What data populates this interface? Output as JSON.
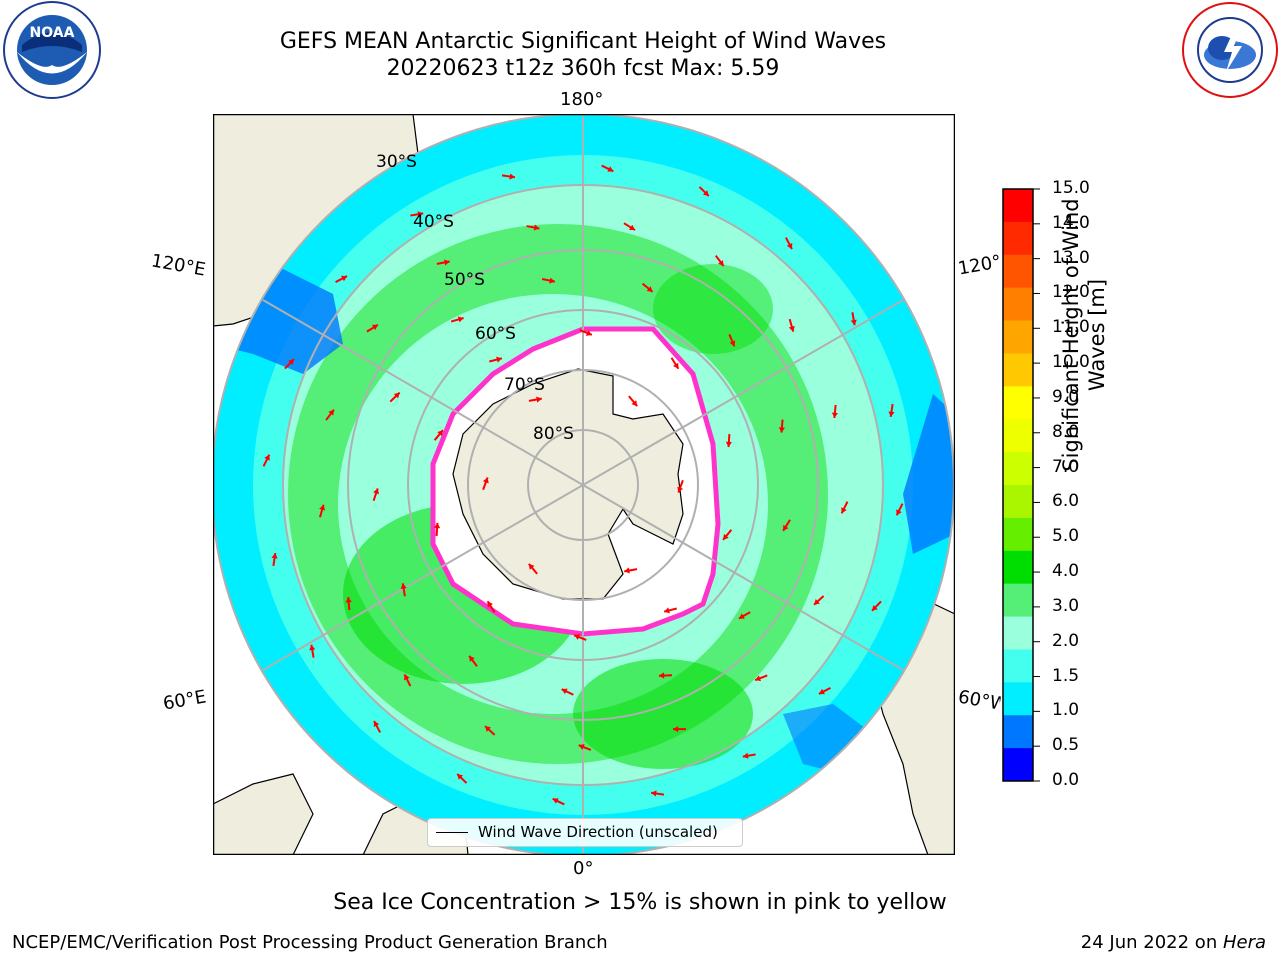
{
  "title": {
    "line1": "GEFS MEAN Antarctic Significant Height of Wind Waves",
    "line2": "20220623 t12z 360h fcst   Max: 5.59"
  },
  "caption": "Sea Ice Concentration > 15% is shown in pink to yellow",
  "footer": {
    "left": "NCEP/EMC/Verification Post Processing Product Generation Branch",
    "date": "24 Jun 2022 on ",
    "machine": "Hera"
  },
  "map": {
    "projection": "south-polar-stereographic",
    "longitude_labels": {
      "top": "180°",
      "bottom": "0°",
      "left_upper": "120°E",
      "left_lower": "60°E",
      "right_upper": "120°W",
      "right_lower": "60°W"
    },
    "latitude_labels": [
      "30°S",
      "40°S",
      "50°S",
      "60°S",
      "70°S",
      "80°S"
    ],
    "legend_label": "Wind Wave Direction (unscaled)",
    "colors": {
      "land": "#efedde",
      "ice": "#ffffff",
      "arrow": "#ff0000",
      "grid": "#b0b0b0"
    }
  },
  "colorbar": {
    "label_line1": "Significant Height of Wind",
    "label_line2": "Waves [m]",
    "ticks": [
      "15.0",
      "14.0",
      "13.0",
      "12.0",
      "11.0",
      "10.0",
      "9.0",
      "8.0",
      "7.0",
      "6.0",
      "5.0",
      "4.0",
      "3.0",
      "2.0",
      "1.5",
      "1.0",
      "0.5",
      "0.0"
    ],
    "colors": [
      "#ff0000",
      "#ff2a00",
      "#ff5500",
      "#ff7f00",
      "#ffa500",
      "#ffc800",
      "#ffff00",
      "#eeff00",
      "#ccff00",
      "#aaf500",
      "#66ee00",
      "#00dd00",
      "#55ee77",
      "#99ffdd",
      "#44ffee",
      "#00eeff",
      "#0077ff",
      "#0000ff"
    ]
  },
  "logos": {
    "left_text": "NOAA",
    "right_text": "NATIONAL WEATHER SERVICE"
  }
}
